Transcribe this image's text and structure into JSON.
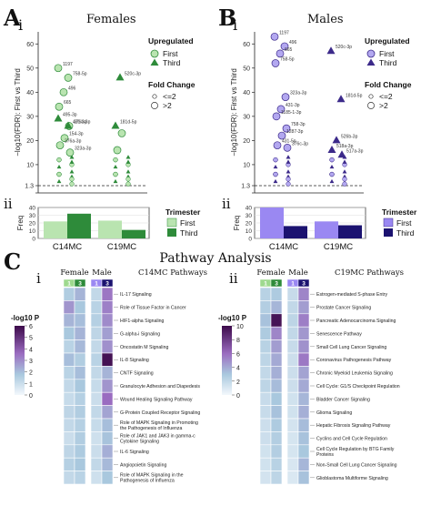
{
  "panels": {
    "A": {
      "letter": "A",
      "sub": "i",
      "sub2": "ii",
      "title": "Females"
    },
    "B": {
      "letter": "B",
      "sub": "i",
      "sub2": "ii",
      "title": "Males"
    },
    "C": {
      "letter": "C",
      "title": "Pathway Analysis",
      "sub_left": "i",
      "sub_right": "ii"
    }
  },
  "volcano": {
    "ylabel": "−log10(FDR): First vs Third",
    "yticks": [
      "0",
      "1.3",
      "10",
      "20",
      "30",
      "40",
      "50",
      "60"
    ],
    "ymax": 65,
    "threshold": 1.3,
    "xticks": [
      "C14MC",
      "C19MC"
    ],
    "colors": {
      "female_first": "#b9e4b0",
      "female_third": "#2e8b3a",
      "male_first": "#b3a8f0",
      "male_third": "#3c2a8a"
    }
  },
  "legends": {
    "upregulated": "Upregulated",
    "first": "First",
    "third": "Third",
    "fold_change": "Fold Change",
    "fc_small": "<=2",
    "fc_large": ">2",
    "trimester": "Trimester"
  },
  "chart_data": [
    {
      "type": "scatter",
      "panel": "A i",
      "title": "Females",
      "ylabel": "−log10(FDR): First vs Third",
      "ylim": [
        0,
        65
      ],
      "categories": [
        "C14MC",
        "C19MC"
      ],
      "series": [
        {
          "name": "First",
          "points": [
            {
              "x": "C14MC",
              "y": 50,
              "label": "1197"
            },
            {
              "x": "C14MC",
              "y": 46,
              "label": "758-5p"
            },
            {
              "x": "C14MC",
              "y": 40,
              "label": "496"
            },
            {
              "x": "C14MC",
              "y": 34,
              "label": "665"
            },
            {
              "x": "C14MC",
              "y": 26,
              "label": "376b-3p"
            },
            {
              "x": "C14MC",
              "y": 21,
              "label": "154-3p"
            },
            {
              "x": "C14MC",
              "y": 18,
              "label": "376a-3p"
            },
            {
              "x": "C14MC",
              "y": 15,
              "label": "323a-3p"
            },
            {
              "x": "C19MC",
              "y": 23,
              "label": ""
            },
            {
              "x": "C19MC",
              "y": 16,
              "label": ""
            }
          ]
        },
        {
          "name": "Third",
          "points": [
            {
              "x": "C14MC",
              "y": 29,
              "label": "495-3p"
            },
            {
              "x": "C14MC",
              "y": 26,
              "label": "431-3p"
            },
            {
              "x": "C19MC",
              "y": 46,
              "label": "520c-3p"
            },
            {
              "x": "C19MC",
              "y": 26,
              "label": "181d-5p"
            }
          ]
        }
      ]
    },
    {
      "type": "scatter",
      "panel": "B i",
      "title": "Males",
      "ylabel": "−log10(FDR): First vs Third",
      "ylim": [
        0,
        65
      ],
      "categories": [
        "C14MC",
        "C19MC"
      ],
      "series": [
        {
          "name": "First",
          "points": [
            {
              "x": "C14MC",
              "y": 63,
              "label": "1197"
            },
            {
              "x": "C14MC",
              "y": 59,
              "label": "496"
            },
            {
              "x": "C14MC",
              "y": 56,
              "label": "665"
            },
            {
              "x": "C14MC",
              "y": 52,
              "label": "758-5p"
            },
            {
              "x": "C14MC",
              "y": 38,
              "label": "323a-3p"
            },
            {
              "x": "C14MC",
              "y": 33,
              "label": "431-3p"
            },
            {
              "x": "C14MC",
              "y": 30,
              "label": "1185-1-3p"
            },
            {
              "x": "C14MC",
              "y": 25,
              "label": "758-3p"
            },
            {
              "x": "C14MC",
              "y": 22,
              "label": "1287-3p"
            },
            {
              "x": "C14MC",
              "y": 18,
              "label": "431-5p"
            },
            {
              "x": "C14MC",
              "y": 17,
              "label": "376c-3p"
            }
          ]
        },
        {
          "name": "Third",
          "points": [
            {
              "x": "C19MC",
              "y": 57,
              "label": "520c-3p"
            },
            {
              "x": "C19MC",
              "y": 37,
              "label": "181d-5p"
            },
            {
              "x": "C19MC",
              "y": 20,
              "label": "526b-3p"
            },
            {
              "x": "C19MC",
              "y": 16,
              "label": "518a-3p"
            },
            {
              "x": "C19MC",
              "y": 14,
              "label": "517a-3p"
            }
          ]
        }
      ]
    },
    {
      "type": "bar",
      "panel": "A ii",
      "ylabel": "Freq",
      "ylim": [
        0,
        40
      ],
      "categories": [
        "C14MC",
        "C19MC"
      ],
      "series": [
        {
          "name": "First",
          "values": [
            22,
            23
          ]
        },
        {
          "name": "Third",
          "values": [
            32,
            11
          ]
        }
      ]
    },
    {
      "type": "bar",
      "panel": "B ii",
      "ylabel": "Freq",
      "ylim": [
        0,
        40
      ],
      "categories": [
        "C14MC",
        "C19MC"
      ],
      "series": [
        {
          "name": "First",
          "values": [
            40,
            22
          ]
        },
        {
          "name": "Third",
          "values": [
            16,
            17
          ]
        }
      ]
    },
    {
      "type": "heatmap",
      "panel": "C i",
      "title": "C14MC Pathways",
      "legend_title": "-log10 P",
      "legend_ticks": [
        "0",
        "1",
        "2",
        "3",
        "4",
        "5",
        "6"
      ],
      "vmax": 6,
      "groups": [
        "Female",
        "Male"
      ],
      "columns": [
        "1",
        "3",
        "1",
        "3"
      ],
      "rows": [
        {
          "name": "IL-17 Signaling",
          "values": [
            1.6,
            2.2,
            1.2,
            3.4
          ]
        },
        {
          "name": "Role of Tissue Factor in Cancer",
          "values": [
            2.8,
            1.8,
            1.4,
            3.2
          ]
        },
        {
          "name": "HIF1-alpha Signaling",
          "values": [
            2.2,
            2.0,
            1.5,
            3.0
          ]
        },
        {
          "name": "G-alpha-i Signaling",
          "values": [
            1.8,
            2.2,
            1.3,
            2.6
          ]
        },
        {
          "name": "Oncostatin M Signaling",
          "values": [
            1.4,
            2.1,
            1.2,
            2.9
          ]
        },
        {
          "name": "IL-8 Signaling",
          "values": [
            2.0,
            1.6,
            1.4,
            5.8
          ]
        },
        {
          "name": "CNTF Signaling",
          "values": [
            1.4,
            2.0,
            1.2,
            2.2
          ]
        },
        {
          "name": "Granulocyte Adhesion and Diapedesis",
          "values": [
            1.2,
            1.8,
            1.1,
            2.8
          ]
        },
        {
          "name": "Wound Healing Signaling Pathway",
          "values": [
            1.1,
            1.5,
            1.0,
            3.6
          ]
        },
        {
          "name": "G-Protein Coupled Receptor Signaling",
          "values": [
            1.3,
            1.6,
            1.2,
            2.5
          ]
        },
        {
          "name": "Role of MAPK Signaling in Promoting the Pathogenesis of Influenza",
          "values": [
            1.2,
            1.5,
            1.1,
            2.0
          ]
        },
        {
          "name": "Role of JAK1 and JAK3 in gamma-c Cytokine Signaling",
          "values": [
            1.0,
            1.6,
            0.9,
            1.9
          ]
        },
        {
          "name": "IL-6 Signaling",
          "values": [
            1.3,
            1.7,
            1.0,
            2.3
          ]
        },
        {
          "name": "Angiopoietin Signaling",
          "values": [
            1.5,
            1.8,
            1.2,
            2.1
          ]
        },
        {
          "name": "Role of MAPK Signaling in the Pathogenesis of Influenza",
          "values": [
            1.2,
            1.4,
            0.9,
            1.8
          ]
        }
      ]
    },
    {
      "type": "heatmap",
      "panel": "C ii",
      "title": "C19MC Pathways",
      "legend_title": "-log10 P",
      "legend_ticks": [
        "0",
        "2",
        "4",
        "6",
        "8",
        "10"
      ],
      "vmax": 10,
      "groups": [
        "Female",
        "Male"
      ],
      "columns": [
        "1",
        "3",
        "1",
        "3"
      ],
      "rows": [
        {
          "name": "Estrogen-mediated S-phase Entry",
          "values": [
            2.4,
            2.8,
            1.8,
            5.2
          ]
        },
        {
          "name": "Prostate Cancer Signaling",
          "values": [
            2.6,
            3.6,
            2.0,
            4.4
          ]
        },
        {
          "name": "Pancreatic Adenocarcinoma Signaling",
          "values": [
            3.2,
            9.6,
            2.2,
            5.4
          ]
        },
        {
          "name": "Senescence Pathway",
          "values": [
            2.8,
            5.2,
            2.0,
            4.6
          ]
        },
        {
          "name": "Small Cell Lung Cancer Signaling",
          "values": [
            2.4,
            4.4,
            1.8,
            4.8
          ]
        },
        {
          "name": "Coronavirus Pathogenesis Pathway",
          "values": [
            2.2,
            4.0,
            1.6,
            5.6
          ]
        },
        {
          "name": "Chronic Myeloid Leukemia Signaling",
          "values": [
            2.0,
            3.8,
            1.6,
            4.2
          ]
        },
        {
          "name": "Cell Cycle: G1/S Checkpoint Regulation",
          "values": [
            2.2,
            3.4,
            1.6,
            4.0
          ]
        },
        {
          "name": "Bladder Cancer Signaling",
          "values": [
            1.8,
            3.0,
            1.4,
            3.6
          ]
        },
        {
          "name": "Glioma Signaling",
          "values": [
            1.8,
            3.2,
            1.4,
            3.8
          ]
        },
        {
          "name": "Hepatic Fibrosis Signaling Pathway",
          "values": [
            1.6,
            2.8,
            1.3,
            3.4
          ]
        },
        {
          "name": "Cyclins and Cell Cycle Regulation",
          "values": [
            1.6,
            2.6,
            1.2,
            3.2
          ]
        },
        {
          "name": "Cell Cycle Regulation by BTG Family Proteins",
          "values": [
            1.4,
            2.6,
            1.2,
            3.0
          ]
        },
        {
          "name": "Non-Small Cell Lung Cancer Signaling",
          "values": [
            1.4,
            2.4,
            1.1,
            3.6
          ]
        },
        {
          "name": "Glioblastoma Multiforme Signaling",
          "values": [
            1.3,
            2.2,
            1.0,
            3.2
          ]
        }
      ]
    }
  ]
}
